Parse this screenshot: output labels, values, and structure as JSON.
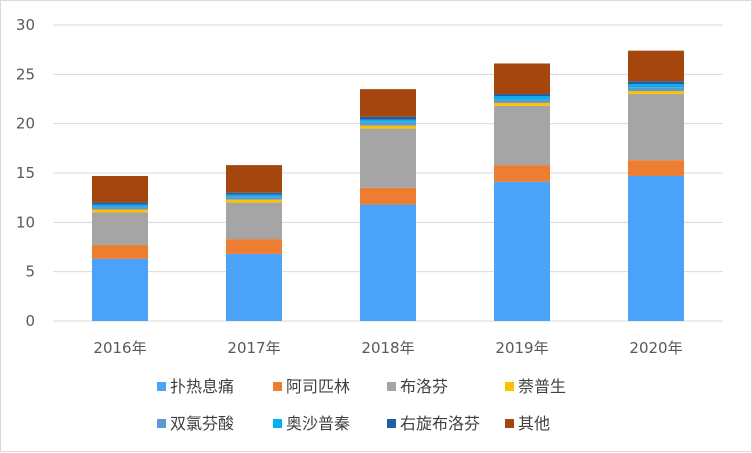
{
  "chart_data": {
    "type": "bar",
    "stacked": true,
    "categories": [
      "2016年",
      "2017年",
      "2018年",
      "2019年",
      "2020年"
    ],
    "series": [
      {
        "name": "扑热息痛",
        "color": "#4BA3F9",
        "values": [
          6.3,
          6.8,
          11.8,
          14.1,
          14.7
        ]
      },
      {
        "name": "阿司匹林",
        "color": "#ED7D31",
        "values": [
          1.4,
          1.5,
          1.7,
          1.7,
          1.6
        ]
      },
      {
        "name": "布洛芬",
        "color": "#A5A5A5",
        "values": [
          3.3,
          3.7,
          6.0,
          6.0,
          6.7
        ]
      },
      {
        "name": "萘普生",
        "color": "#FFC000",
        "values": [
          0.3,
          0.3,
          0.3,
          0.3,
          0.3
        ]
      },
      {
        "name": "双氯芬酸",
        "color": "#5B9BD5",
        "values": [
          0.3,
          0.3,
          0.4,
          0.4,
          0.4
        ]
      },
      {
        "name": "奥沙普秦",
        "color": "#00B0F0",
        "values": [
          0.2,
          0.2,
          0.2,
          0.3,
          0.3
        ]
      },
      {
        "name": "右旋布洛芬",
        "color": "#1F5FA8",
        "values": [
          0.2,
          0.2,
          0.3,
          0.2,
          0.3
        ]
      },
      {
        "name": "其他",
        "color": "#A5460E",
        "values": [
          2.7,
          2.8,
          2.8,
          3.1,
          3.1
        ]
      }
    ],
    "ylim": [
      0,
      30
    ],
    "yticks": [
      0,
      5,
      10,
      15,
      20,
      25,
      30
    ],
    "grid": true,
    "legend_position": "bottom",
    "title": "",
    "xlabel": "",
    "ylabel": ""
  }
}
